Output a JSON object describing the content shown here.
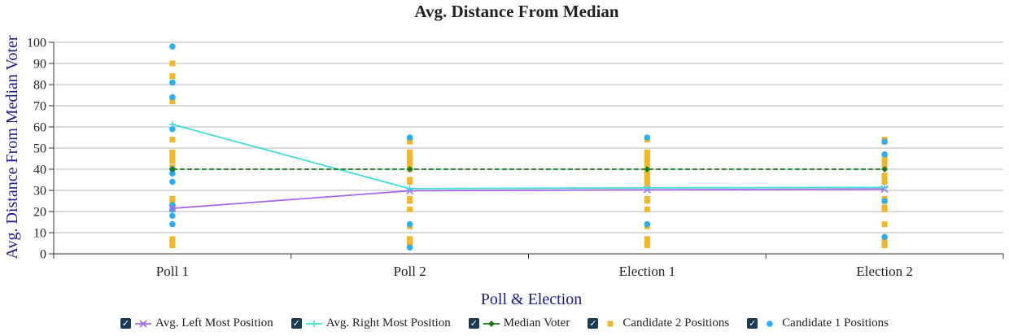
{
  "chart_data": {
    "type": "line",
    "title": "Avg. Distance From Median",
    "xlabel": "Poll & Election",
    "ylabel": "Avg. Distance From Median Voter",
    "categories": [
      "Poll 1",
      "Poll 2",
      "Election 1",
      "Election 2"
    ],
    "ylim": [
      0,
      100
    ],
    "yticks": [
      0,
      10,
      20,
      30,
      40,
      50,
      60,
      70,
      80,
      90,
      100
    ],
    "grid": true,
    "legend_position": "bottom",
    "series": [
      {
        "name": "Avg. Left Most Position",
        "kind": "line",
        "marker": "x",
        "color": "#a368e6",
        "values": [
          21.5,
          29.8,
          30.3,
          30.6
        ]
      },
      {
        "name": "Avg. Right Most Position",
        "kind": "line",
        "marker": "plus",
        "color": "#44dcd6",
        "values": [
          61.2,
          30.8,
          31.2,
          31.4
        ]
      },
      {
        "name": "Median Voter",
        "kind": "line",
        "marker": "diamond",
        "dashed": true,
        "color": "#1b7a1b",
        "values": [
          40,
          40,
          40,
          40
        ]
      },
      {
        "name": "Candidate 2 Positions",
        "kind": "scatter",
        "marker": "square",
        "color": "#f0b72d",
        "points": [
          [
            0,
            90
          ],
          [
            0,
            84
          ],
          [
            0,
            73
          ],
          [
            0,
            72
          ],
          [
            0,
            54
          ],
          [
            0,
            48
          ],
          [
            0,
            46
          ],
          [
            0,
            45
          ],
          [
            0,
            44
          ],
          [
            0,
            41
          ],
          [
            0,
            26
          ],
          [
            0,
            25
          ],
          [
            0,
            22
          ],
          [
            0,
            7
          ],
          [
            0,
            6
          ],
          [
            0,
            5
          ],
          [
            0,
            4
          ],
          [
            1,
            54
          ],
          [
            1,
            53
          ],
          [
            1,
            48
          ],
          [
            1,
            47
          ],
          [
            1,
            46
          ],
          [
            1,
            45
          ],
          [
            1,
            44
          ],
          [
            1,
            42
          ],
          [
            1,
            40
          ],
          [
            1,
            35
          ],
          [
            1,
            34
          ],
          [
            1,
            26
          ],
          [
            1,
            25
          ],
          [
            1,
            21
          ],
          [
            1,
            13
          ],
          [
            1,
            7
          ],
          [
            1,
            6
          ],
          [
            1,
            5
          ],
          [
            1,
            4
          ],
          [
            2,
            54
          ],
          [
            2,
            48
          ],
          [
            2,
            47
          ],
          [
            2,
            46
          ],
          [
            2,
            45
          ],
          [
            2,
            44
          ],
          [
            2,
            42
          ],
          [
            2,
            38
          ],
          [
            2,
            37
          ],
          [
            2,
            35
          ],
          [
            2,
            34
          ],
          [
            2,
            33
          ],
          [
            2,
            26
          ],
          [
            2,
            25
          ],
          [
            2,
            21
          ],
          [
            2,
            13
          ],
          [
            2,
            7
          ],
          [
            2,
            6
          ],
          [
            2,
            5
          ],
          [
            2,
            4
          ],
          [
            3,
            54
          ],
          [
            3,
            53
          ],
          [
            3,
            46
          ],
          [
            3,
            45
          ],
          [
            3,
            44
          ],
          [
            3,
            42
          ],
          [
            3,
            37
          ],
          [
            3,
            35
          ],
          [
            3,
            34
          ],
          [
            3,
            26
          ],
          [
            3,
            25
          ],
          [
            3,
            22
          ],
          [
            3,
            21
          ],
          [
            3,
            14
          ],
          [
            3,
            7
          ],
          [
            3,
            6
          ],
          [
            3,
            5
          ],
          [
            3,
            4
          ]
        ]
      },
      {
        "name": "Candidate 1 Positions",
        "kind": "scatter",
        "marker": "circle",
        "color": "#2eaef0",
        "points": [
          [
            0,
            98
          ],
          [
            0,
            81
          ],
          [
            0,
            74
          ],
          [
            0,
            59
          ],
          [
            0,
            40
          ],
          [
            0,
            38
          ],
          [
            0,
            34
          ],
          [
            0,
            23
          ],
          [
            0,
            21
          ],
          [
            0,
            18
          ],
          [
            0,
            14
          ],
          [
            1,
            55
          ],
          [
            1,
            14
          ],
          [
            1,
            3
          ],
          [
            2,
            55
          ],
          [
            2,
            14
          ],
          [
            3,
            53
          ],
          [
            3,
            47
          ],
          [
            3,
            8
          ],
          [
            3,
            25
          ]
        ]
      }
    ]
  }
}
